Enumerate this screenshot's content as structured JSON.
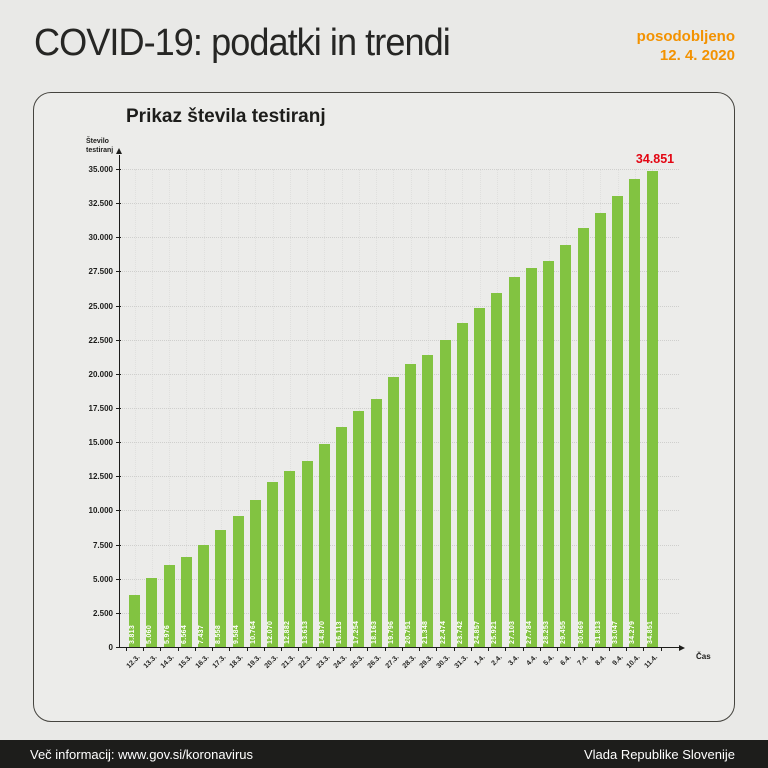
{
  "header": {
    "title": "COVID-19: podatki in trendi",
    "updated_label": "posodobljeno",
    "updated_date": "12. 4. 2020"
  },
  "chart": {
    "title": "Prikaz števila testiranj",
    "y_axis_title_lines": [
      "Število",
      "testiranj"
    ],
    "x_axis_title": "Čas",
    "y_tick_labels": [
      "0",
      "2.500",
      "5.000",
      "7.500",
      "10.000",
      "12.500",
      "15.000",
      "17.500",
      "20.000",
      "22.500",
      "25.000",
      "27.500",
      "30.000",
      "32.500",
      "35.000"
    ]
  },
  "chart_data": {
    "type": "bar",
    "title": "Prikaz števila testiranj",
    "xlabel": "Čas",
    "ylabel": "Število testiranj",
    "ylim": [
      0,
      35000
    ],
    "y_tick_interval": 2500,
    "grid": "dotted",
    "legend": "none",
    "categories": [
      "12.3.",
      "13.3.",
      "14.3.",
      "15.3.",
      "16.3.",
      "17.3.",
      "18.3.",
      "19.3.",
      "20.3.",
      "21.3.",
      "22.3.",
      "23.3.",
      "24.3.",
      "25.3.",
      "26.3.",
      "27.3.",
      "28.3.",
      "29.3.",
      "30.3.",
      "31.3.",
      "1.4.",
      "2.4.",
      "3.4.",
      "4.4.",
      "5.4.",
      "6.4.",
      "7.4.",
      "8.4.",
      "9.4.",
      "10.4.",
      "11.4."
    ],
    "values": [
      3813,
      5060,
      5976,
      6564,
      7437,
      8558,
      9584,
      10764,
      12070,
      12882,
      13613,
      14870,
      16113,
      17254,
      18163,
      19796,
      20751,
      21348,
      22474,
      23742,
      24857,
      25921,
      27103,
      27784,
      28253,
      29455,
      30669,
      31813,
      33047,
      34279,
      34851
    ],
    "bar_labels": [
      "3.813",
      "5.060",
      "5.976",
      "6.564",
      "7.437",
      "8.558",
      "9.584",
      "10.764",
      "12.070",
      "12.882",
      "13.613",
      "14.870",
      "16.113",
      "17.254",
      "18.163",
      "19.796",
      "20.751",
      "21.348",
      "22.474",
      "23.742",
      "24.857",
      "25.921",
      "27.103",
      "27.784",
      "28.253",
      "29.455",
      "30.669",
      "31.813",
      "33.047",
      "34.279",
      "34.851"
    ],
    "annotation": {
      "text": "34.851"
    }
  },
  "colors": {
    "bar_green": "#82c341",
    "annotation_red": "#e30613",
    "accent_orange": "#f39200",
    "footer_bg": "#1d1d1b",
    "background": "#e9e9e7"
  },
  "footer": {
    "left": "Več informacij: www.gov.si/koronavirus",
    "right": "Vlada Republike Slovenije"
  }
}
